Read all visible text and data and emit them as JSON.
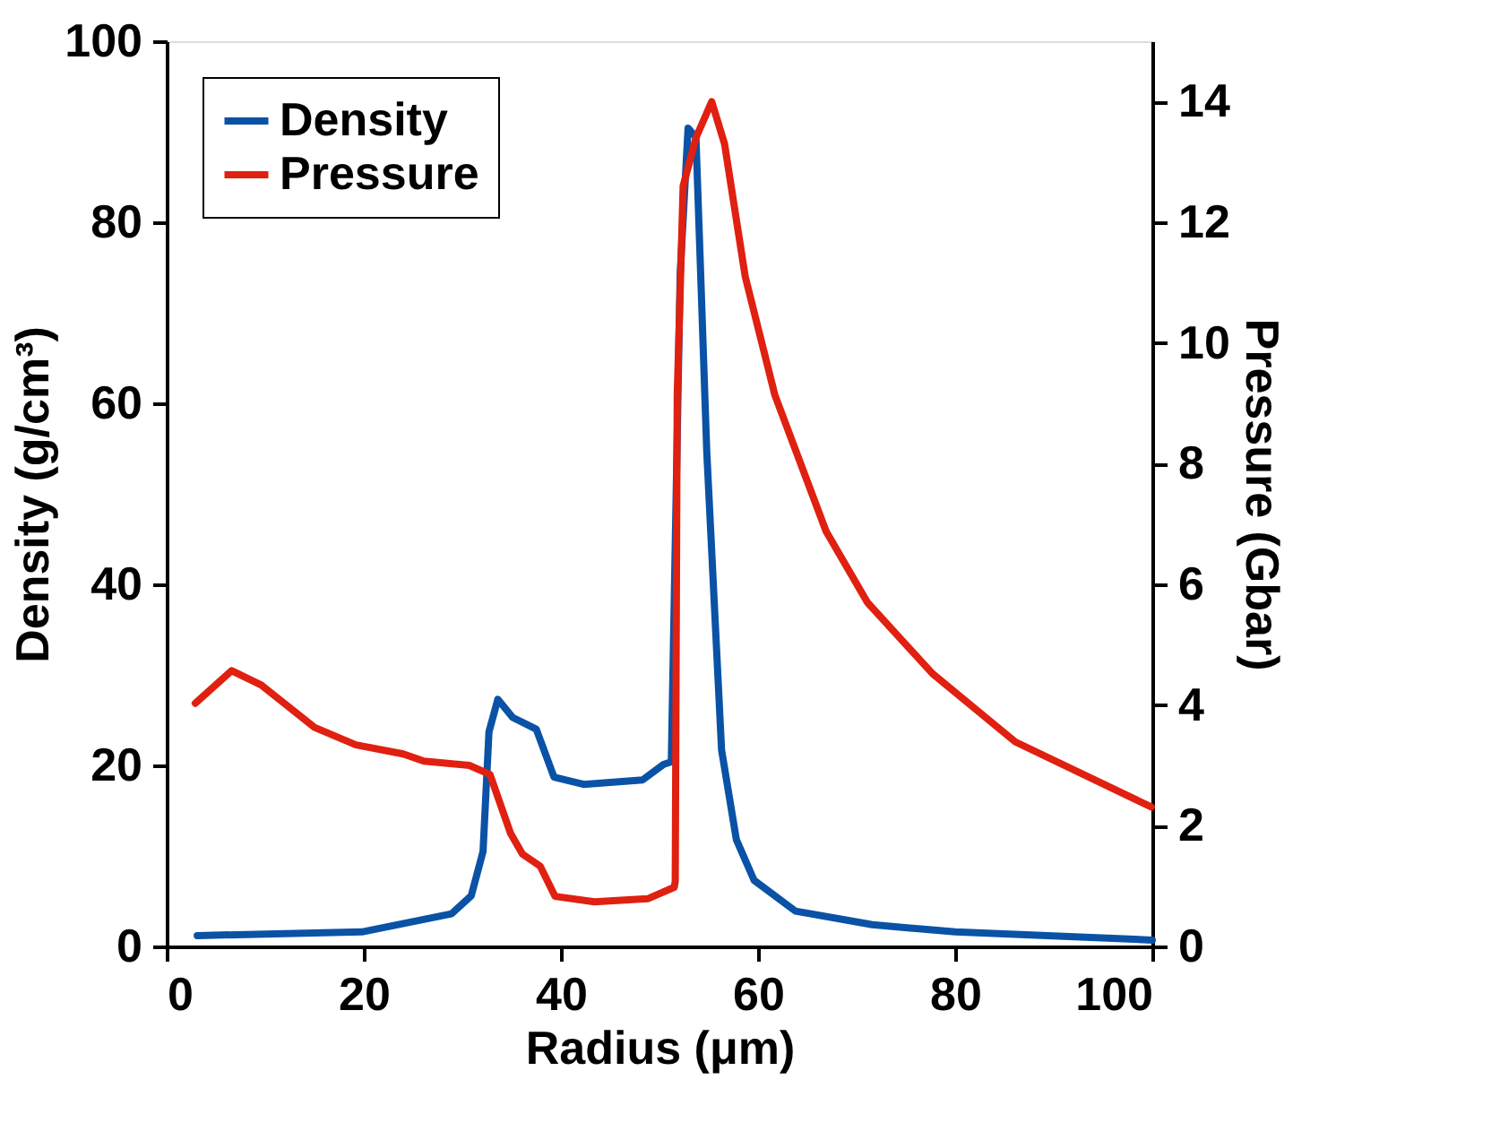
{
  "chart_data": {
    "type": "line",
    "xlabel": "Radius (μm)",
    "ylabel": "Density (g/cm³)",
    "y2label": "Pressure (Gbar)",
    "xlim": [
      0,
      100
    ],
    "xticks": [
      0,
      20,
      40,
      60,
      80,
      100
    ],
    "ylim": [
      0,
      100
    ],
    "yticks": [
      0,
      20,
      40,
      60,
      80,
      100
    ],
    "y2lim": [
      0,
      15
    ],
    "y2ticks": [
      0,
      2,
      4,
      6,
      8,
      10,
      12,
      14
    ],
    "grid": false,
    "legend": "top left",
    "line_style": "solid",
    "marker": "none",
    "series": [
      {
        "name": "Density",
        "color": "#0a52a5",
        "x": [
          3.1,
          19.8,
          28.9,
          30.9,
          32.1,
          32.7,
          33.6,
          35.1,
          37.5,
          39.3,
          42.3,
          48.3,
          50.4,
          51.2,
          52.1,
          52.9,
          53.7,
          54.8,
          56.3,
          57.8,
          59.6,
          63.8,
          71.6,
          80,
          100
        ],
        "values": [
          1.2,
          1.6,
          3.6,
          5.6,
          10.5,
          23.7,
          27.3,
          25.3,
          24,
          18.7,
          17.9,
          18.4,
          20.1,
          20.4,
          74.3,
          90.4,
          89.4,
          54.6,
          21.7,
          11.8,
          7.3,
          3.9,
          2.4,
          1.6,
          0.7
        ]
      },
      {
        "name": "Pressure",
        "color": "#e02010",
        "axis": "y2",
        "x": [
          2.9,
          6.6,
          9.6,
          15,
          19.2,
          24,
          26.1,
          30.7,
          32.8,
          34.9,
          36.1,
          37.9,
          39.4,
          43.4,
          48.8,
          51.5,
          51.6,
          51.8,
          52.4,
          53.7,
          55.3,
          56.6,
          58.7,
          61.7,
          66.9,
          71.1,
          77.7,
          86.1,
          99.9
        ],
        "values": [
          4.03,
          4.57,
          4.33,
          3.63,
          3.34,
          3.19,
          3.07,
          3.0,
          2.85,
          1.87,
          1.53,
          1.33,
          0.83,
          0.74,
          0.79,
          0.98,
          1.08,
          9.14,
          12.6,
          13.4,
          14.0,
          13.3,
          11.1,
          9.14,
          6.88,
          5.7,
          4.52,
          3.39,
          2.31
        ]
      }
    ]
  }
}
